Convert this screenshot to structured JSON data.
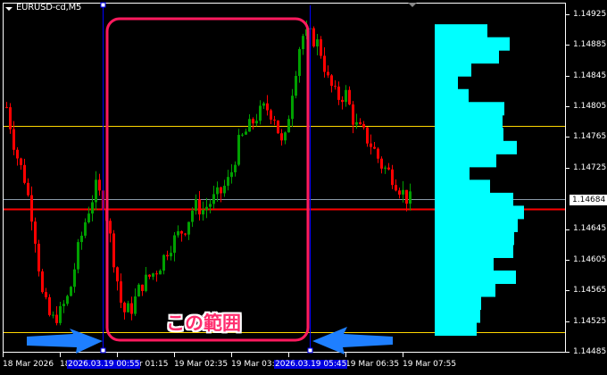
{
  "window": {
    "symbol_title": "EURUSD-cd,M5",
    "menu_icon": "triangle-down-icon"
  },
  "annotation": {
    "label": "この範囲",
    "box_color": "#ff1a5e",
    "arrow_color": "#1e7fff"
  },
  "chart_data": {
    "type": "candlestick",
    "title": "EURUSD-cd,M5",
    "ylim": [
      1.14485,
      1.14945
    ],
    "y_ticks": [
      "1.14925",
      "1.14885",
      "1.14845",
      "1.14805",
      "1.14765",
      "1.14725",
      "1.14645",
      "1.14605",
      "1.14565",
      "1.14525",
      "1.14485"
    ],
    "current_price": "1.14684",
    "x_ticks": [
      "18 Mar 2026",
      "18",
      "r 01:15",
      "19 Mar 02:35",
      "19 Mar 03:5",
      "19 Mar 06:35",
      "19 Mar 07:55"
    ],
    "crosshair_time_labels": [
      "2026.03.19 00:55",
      "2026.03.19 05:45"
    ],
    "price_path": [
      1.14804,
      1.14746,
      1.14711,
      1.14653,
      1.14559,
      1.14525,
      1.14536,
      1.14559,
      1.14618,
      1.14664,
      1.14699,
      1.14676,
      1.14606,
      1.14536,
      1.14542,
      1.14571,
      1.14583,
      1.14594,
      1.14618,
      1.14635,
      1.14647,
      1.14676,
      1.1467,
      1.14682,
      1.14693,
      1.14711,
      1.14757,
      1.14775,
      1.14792,
      1.14804,
      1.14792,
      1.14746,
      1.14827,
      1.14897,
      1.14897,
      1.14885,
      1.14839,
      1.14816,
      1.14821,
      1.14781,
      1.14769,
      1.14752,
      1.14728,
      1.14717,
      1.14699,
      1.14682,
      1.14688
    ],
    "horizontal_lines": [
      {
        "price": 1.1478,
        "color": "#ffd700"
      },
      {
        "price": 1.14511,
        "color": "#ffd700"
      },
      {
        "price": 1.14684,
        "color": "#8a9aa8"
      },
      {
        "price": 1.14671,
        "color": "#ff0000"
      }
    ],
    "volume_profile": {
      "color": "#00ffff",
      "top_price": 1.14912,
      "level_step": 0.000169,
      "relative_volumes": [
        59,
        84,
        72,
        41,
        26,
        38,
        78,
        76,
        77,
        92,
        69,
        39,
        62,
        88,
        100,
        93,
        89,
        88,
        66,
        91,
        68,
        52,
        51,
        47
      ]
    },
    "colors": {
      "bull": "#00a000",
      "bear": "#ff0000",
      "grid": "#ffffff"
    }
  }
}
